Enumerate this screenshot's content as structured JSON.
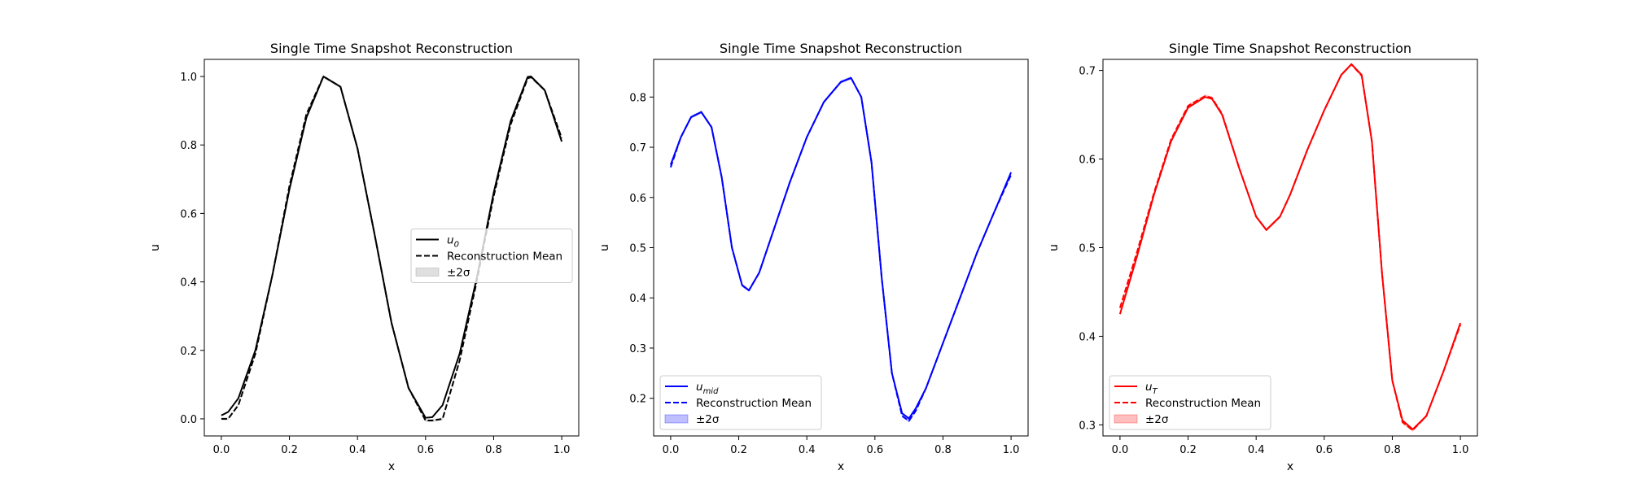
{
  "chart_data": [
    {
      "type": "line",
      "title": "Single Time Snapshot Reconstruction",
      "xlabel": "x",
      "ylabel": "u",
      "xlim": [
        -0.05,
        1.05
      ],
      "ylim": [
        -0.05,
        1.05
      ],
      "xticks": [
        "0.0",
        "0.2",
        "0.4",
        "0.6",
        "0.8",
        "1.0"
      ],
      "yticks": [
        "0.0",
        "0.2",
        "0.4",
        "0.6",
        "0.8",
        "1.0"
      ],
      "color": "#000000",
      "band_color": "#808080",
      "legend_position": "center-right",
      "legend": {
        "truth_label_main": "u",
        "truth_label_sub": "0",
        "mean_label": "Reconstruction Mean",
        "band_label": "±2σ"
      },
      "series": [
        {
          "name": "u_0",
          "style": "solid",
          "x": [
            0.0,
            0.02,
            0.05,
            0.1,
            0.15,
            0.2,
            0.25,
            0.3,
            0.35,
            0.4,
            0.45,
            0.5,
            0.55,
            0.6,
            0.62,
            0.65,
            0.7,
            0.75,
            0.8,
            0.85,
            0.9,
            0.91,
            0.95,
            1.0
          ],
          "y": [
            0.01,
            0.02,
            0.06,
            0.2,
            0.42,
            0.67,
            0.88,
            1.0,
            0.97,
            0.79,
            0.54,
            0.28,
            0.09,
            0.003,
            0.005,
            0.04,
            0.19,
            0.41,
            0.66,
            0.87,
            0.999,
            1.0,
            0.96,
            0.81
          ]
        },
        {
          "name": "Reconstruction Mean",
          "style": "dashed",
          "x": [
            0.0,
            0.02,
            0.05,
            0.1,
            0.15,
            0.2,
            0.25,
            0.3,
            0.35,
            0.4,
            0.45,
            0.5,
            0.55,
            0.6,
            0.62,
            0.65,
            0.7,
            0.75,
            0.8,
            0.85,
            0.9,
            0.91,
            0.95,
            1.0
          ],
          "y": [
            0.0,
            0.0,
            0.04,
            0.19,
            0.42,
            0.68,
            0.89,
            1.0,
            0.97,
            0.79,
            0.54,
            0.28,
            0.09,
            -0.005,
            -0.005,
            0.0,
            0.17,
            0.4,
            0.65,
            0.86,
            0.995,
            0.998,
            0.96,
            0.82
          ]
        }
      ]
    },
    {
      "type": "line",
      "title": "Single Time Snapshot Reconstruction",
      "xlabel": "x",
      "ylabel": "u",
      "xlim": [
        -0.05,
        1.05
      ],
      "ylim": [
        0.125,
        0.875
      ],
      "xticks": [
        "0.0",
        "0.2",
        "0.4",
        "0.6",
        "0.8",
        "1.0"
      ],
      "yticks": [
        "0.2",
        "0.3",
        "0.4",
        "0.5",
        "0.6",
        "0.7",
        "0.8"
      ],
      "color": "#0000ff",
      "band_color": "#0000ff",
      "legend_position": "lower-left",
      "legend": {
        "truth_label_main": "u",
        "truth_label_sub": "mid",
        "mean_label": "Reconstruction Mean",
        "band_label": "±2σ"
      },
      "series": [
        {
          "name": "u_mid",
          "style": "solid",
          "x": [
            0.0,
            0.03,
            0.06,
            0.09,
            0.12,
            0.15,
            0.18,
            0.21,
            0.23,
            0.26,
            0.3,
            0.35,
            0.4,
            0.45,
            0.5,
            0.53,
            0.56,
            0.59,
            0.62,
            0.65,
            0.68,
            0.7,
            0.72,
            0.75,
            0.8,
            0.85,
            0.9,
            0.95,
            1.0
          ],
          "y": [
            0.665,
            0.72,
            0.76,
            0.77,
            0.74,
            0.64,
            0.5,
            0.425,
            0.415,
            0.45,
            0.53,
            0.63,
            0.72,
            0.79,
            0.83,
            0.838,
            0.8,
            0.67,
            0.44,
            0.25,
            0.17,
            0.16,
            0.18,
            0.22,
            0.31,
            0.4,
            0.49,
            0.57,
            0.65
          ]
        },
        {
          "name": "Reconstruction Mean",
          "style": "dashed",
          "x": [
            0.0,
            0.03,
            0.06,
            0.09,
            0.12,
            0.15,
            0.18,
            0.21,
            0.23,
            0.26,
            0.3,
            0.35,
            0.4,
            0.45,
            0.5,
            0.53,
            0.56,
            0.59,
            0.62,
            0.65,
            0.68,
            0.7,
            0.72,
            0.75,
            0.8,
            0.85,
            0.9,
            0.95,
            1.0
          ],
          "y": [
            0.66,
            0.72,
            0.76,
            0.77,
            0.74,
            0.64,
            0.5,
            0.425,
            0.415,
            0.45,
            0.53,
            0.63,
            0.72,
            0.79,
            0.83,
            0.838,
            0.8,
            0.67,
            0.44,
            0.25,
            0.165,
            0.155,
            0.175,
            0.22,
            0.31,
            0.4,
            0.49,
            0.57,
            0.645
          ]
        }
      ]
    },
    {
      "type": "line",
      "title": "Single Time Snapshot Reconstruction",
      "xlabel": "x",
      "ylabel": "u",
      "xlim": [
        -0.05,
        1.05
      ],
      "ylim": [
        0.2875,
        0.7125
      ],
      "xticks": [
        "0.0",
        "0.2",
        "0.4",
        "0.6",
        "0.8",
        "1.0"
      ],
      "yticks": [
        "0.3",
        "0.4",
        "0.5",
        "0.6",
        "0.7"
      ],
      "color": "#ff0000",
      "band_color": "#ff0000",
      "legend_position": "lower-left",
      "legend": {
        "truth_label_main": "u",
        "truth_label_sub": "T",
        "mean_label": "Reconstruction Mean",
        "band_label": "±2σ"
      },
      "series": [
        {
          "name": "u_T",
          "style": "solid",
          "x": [
            0.0,
            0.05,
            0.1,
            0.15,
            0.2,
            0.25,
            0.27,
            0.3,
            0.35,
            0.4,
            0.43,
            0.47,
            0.5,
            0.55,
            0.6,
            0.65,
            0.68,
            0.71,
            0.74,
            0.77,
            0.8,
            0.83,
            0.86,
            0.9,
            0.95,
            1.0
          ],
          "y": [
            0.425,
            0.49,
            0.56,
            0.62,
            0.658,
            0.67,
            0.668,
            0.65,
            0.59,
            0.535,
            0.52,
            0.535,
            0.56,
            0.61,
            0.655,
            0.695,
            0.707,
            0.695,
            0.62,
            0.47,
            0.35,
            0.305,
            0.295,
            0.31,
            0.36,
            0.415
          ]
        },
        {
          "name": "Reconstruction Mean",
          "style": "dashed",
          "x": [
            0.0,
            0.05,
            0.1,
            0.15,
            0.2,
            0.25,
            0.27,
            0.3,
            0.35,
            0.4,
            0.43,
            0.47,
            0.5,
            0.55,
            0.6,
            0.65,
            0.68,
            0.71,
            0.74,
            0.77,
            0.8,
            0.83,
            0.86,
            0.9,
            0.95,
            1.0
          ],
          "y": [
            0.432,
            0.495,
            0.562,
            0.622,
            0.66,
            0.671,
            0.669,
            0.651,
            0.59,
            0.535,
            0.52,
            0.535,
            0.56,
            0.61,
            0.655,
            0.695,
            0.707,
            0.694,
            0.62,
            0.47,
            0.35,
            0.303,
            0.294,
            0.31,
            0.36,
            0.413
          ]
        }
      ]
    }
  ]
}
